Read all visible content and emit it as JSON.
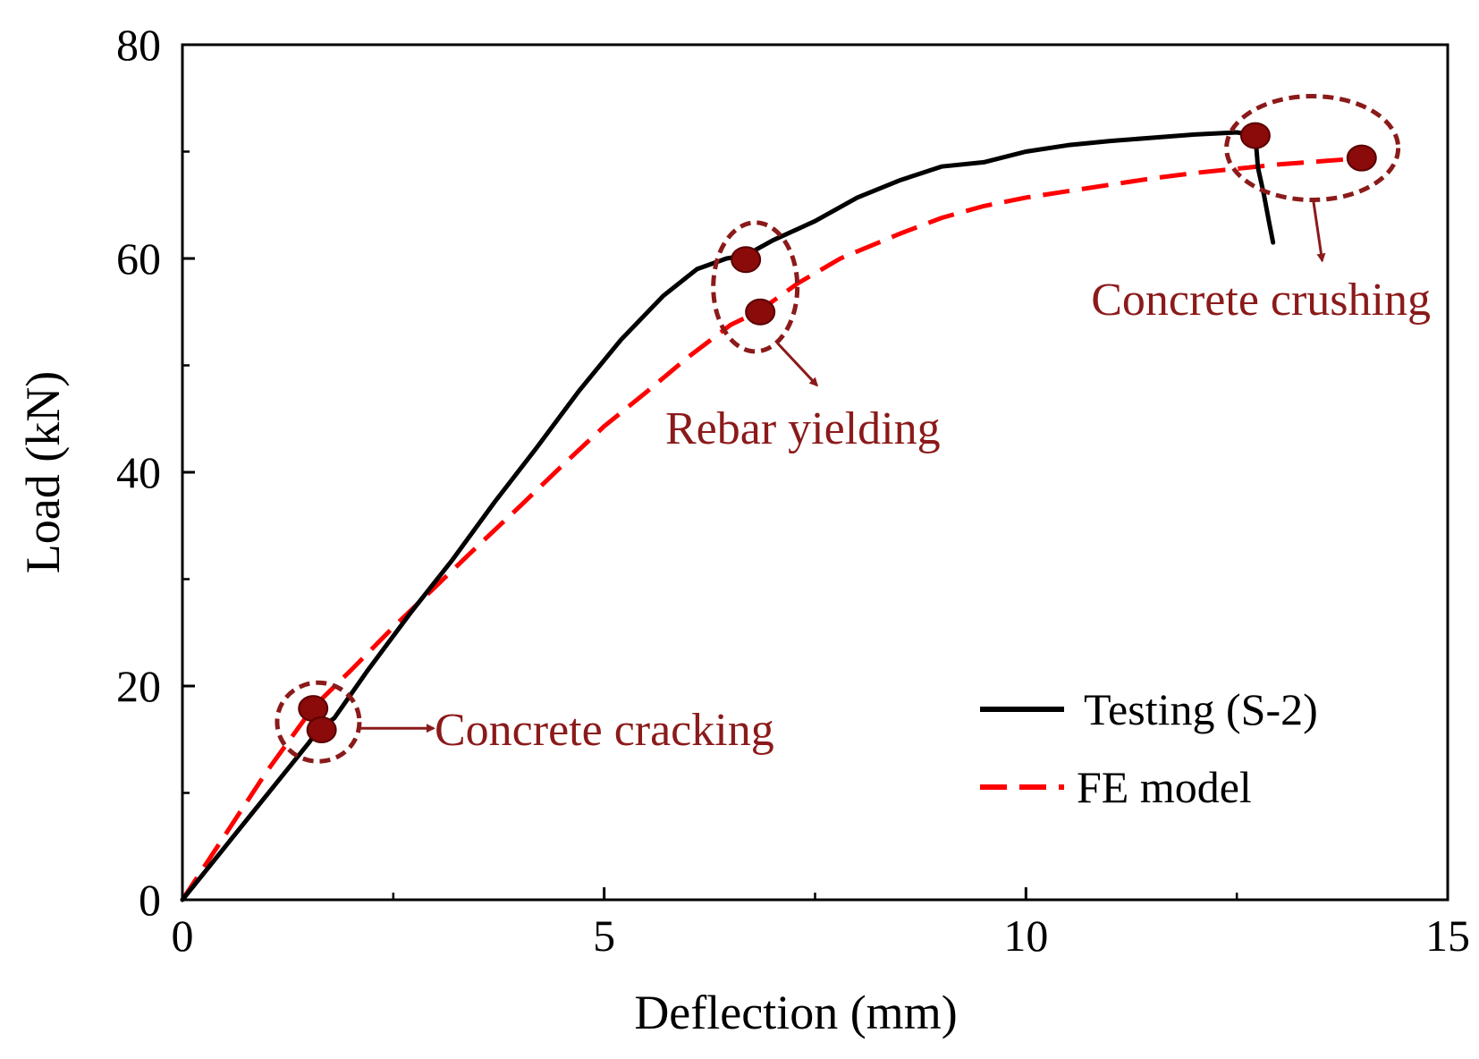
{
  "chart_data": {
    "type": "line",
    "xlabel": "Deflection (mm)",
    "ylabel": "Load (kN)",
    "xlim": [
      0,
      15
    ],
    "ylim": [
      0,
      80
    ],
    "x_ticks": [
      0,
      5,
      10,
      15
    ],
    "y_ticks": [
      0,
      20,
      40,
      60,
      80
    ],
    "x_minor_ticks": [
      2.5,
      7.5,
      12.5
    ],
    "y_minor_ticks": [
      10,
      30,
      50,
      70
    ],
    "grid": false,
    "legend_position": "bottom-right",
    "series": [
      {
        "name": "Testing (S-2)",
        "style": "solid",
        "color": "#000000",
        "x": [
          0,
          0.5,
          1.0,
          1.5,
          1.62,
          1.8,
          2.2,
          2.7,
          3.2,
          3.7,
          4.2,
          4.7,
          5.2,
          5.7,
          6.1,
          6.45,
          6.68,
          7.0,
          7.5,
          8.0,
          8.5,
          9.0,
          9.5,
          10.0,
          10.5,
          11.0,
          11.5,
          12.0,
          12.5,
          12.72,
          12.75,
          12.82,
          12.88,
          12.93
        ],
        "y": [
          0,
          4.9,
          9.8,
          14.7,
          16,
          17,
          21.5,
          26.8,
          31.8,
          37.2,
          42.3,
          47.6,
          52.4,
          56.5,
          59.0,
          60.0,
          60.3,
          61.7,
          63.5,
          65.7,
          67.3,
          68.6,
          69.0,
          70.0,
          70.6,
          71.0,
          71.3,
          71.6,
          71.8,
          71.5,
          68.5,
          66.0,
          63.5,
          61.5
        ]
      },
      {
        "name": "FE model",
        "style": "dashed",
        "color": "#ff0000",
        "x": [
          0,
          0.5,
          1.0,
          1.55,
          2.0,
          2.5,
          3.0,
          3.5,
          4.0,
          4.5,
          5.0,
          5.5,
          6.0,
          6.5,
          6.82,
          7.3,
          7.8,
          8.5,
          9.0,
          9.5,
          10.0,
          10.5,
          11.0,
          11.5,
          12.0,
          12.5,
          13.0,
          13.5,
          14.0
        ],
        "y": [
          0,
          6.0,
          12.0,
          18.0,
          21.5,
          25.5,
          29.3,
          33.1,
          36.8,
          40.6,
          44.3,
          47.5,
          50.8,
          53.8,
          55.0,
          57.7,
          60.0,
          62.3,
          63.8,
          64.9,
          65.7,
          66.3,
          66.9,
          67.5,
          68.0,
          68.4,
          68.8,
          69.1,
          69.4
        ]
      }
    ],
    "markers": [
      {
        "series": "Testing (S-2)",
        "x": 1.55,
        "y": 17.9
      },
      {
        "series": "Testing (S-2)",
        "x": 1.65,
        "y": 15.9
      },
      {
        "series": "Testing (S-2)",
        "x": 6.68,
        "y": 59.9
      },
      {
        "series": "FE model",
        "x": 6.85,
        "y": 55.0
      },
      {
        "series": "Testing (S-2)",
        "x": 12.72,
        "y": 71.5
      },
      {
        "series": "FE model",
        "x": 13.98,
        "y": 69.4
      }
    ],
    "annotations": [
      {
        "text": "Concrete cracking",
        "target_x": 1.6,
        "target_y": 16.8
      },
      {
        "text": "Rebar yielding",
        "target_x": 6.76,
        "target_y": 57.5
      },
      {
        "text": "Concrete crushing",
        "target_x": 13.3,
        "target_y": 70.5
      }
    ],
    "colors": {
      "annotation": "#8b1a1a",
      "marker_fill": "#8b0a0a",
      "marker_stroke": "#5a0000"
    }
  }
}
